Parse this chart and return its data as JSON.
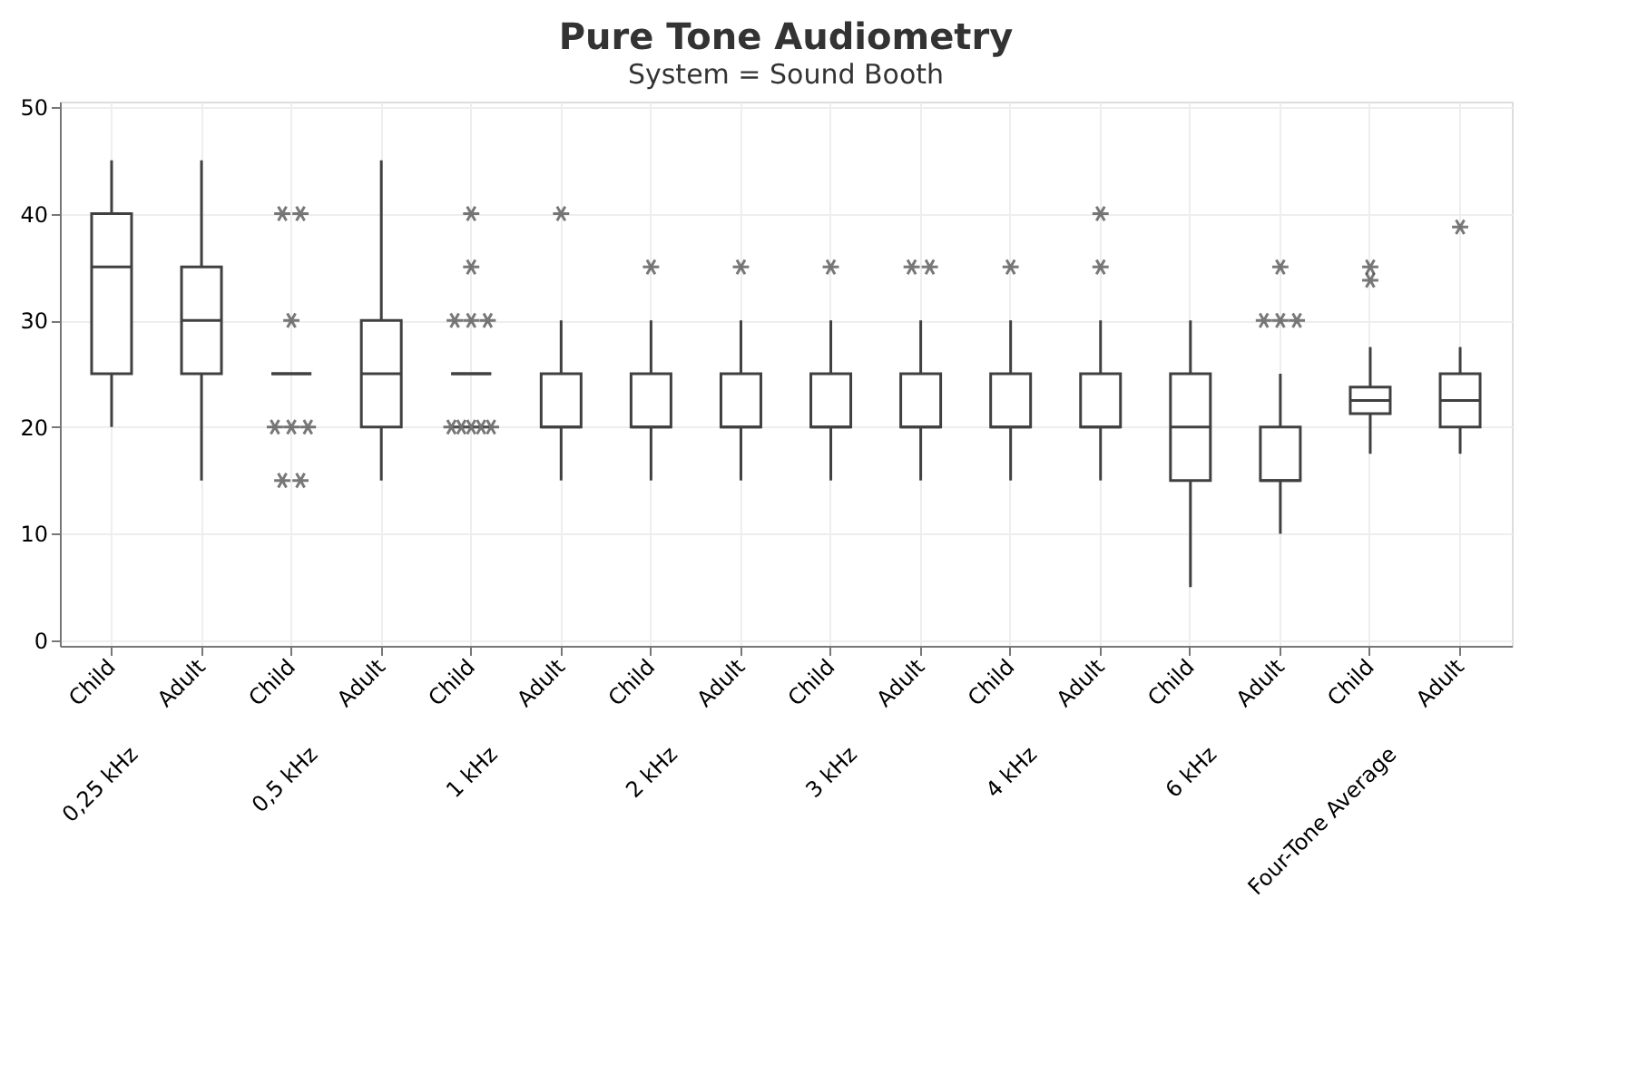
{
  "chart_data": {
    "type": "box",
    "title": "Pure Tone Audiometry",
    "subtitle": "System = Sound Booth",
    "categories": [
      "Child",
      "Adult",
      "Child",
      "Adult",
      "Child",
      "Adult",
      "Child",
      "Adult",
      "Child",
      "Adult",
      "Child",
      "Adult",
      "Child",
      "Adult",
      "Child",
      "Adult"
    ],
    "annotations": [
      "0,25 kHz",
      "0,5 kHz",
      "1 kHz",
      "2 kHz",
      "3 kHz",
      "4 kHz",
      "6 kHz",
      "Four-Tone Average"
    ],
    "boxes": [
      {
        "low": 20,
        "q1": 25,
        "median": 35,
        "q3": 40,
        "high": 45
      },
      {
        "low": 15,
        "q1": 25,
        "median": 30,
        "q3": 35,
        "high": 45
      },
      {
        "low": 25,
        "q1": 25,
        "median": 25,
        "q3": 25,
        "high": 25,
        "outliers": [
          40,
          40,
          30,
          20,
          20,
          20,
          15,
          15
        ]
      },
      {
        "low": 15,
        "q1": 20,
        "median": 25,
        "q3": 30,
        "high": 45
      },
      {
        "low": 25,
        "q1": 25,
        "median": 25,
        "q3": 25,
        "high": 25,
        "outliers": [
          40,
          35,
          30,
          30,
          30,
          20,
          20,
          20,
          20,
          20
        ]
      },
      {
        "low": 15,
        "q1": 20,
        "median": 20,
        "q3": 25,
        "high": 30,
        "outliers": [
          40
        ]
      },
      {
        "low": 15,
        "q1": 20,
        "median": 20,
        "q3": 25,
        "high": 30,
        "outliers": [
          35
        ]
      },
      {
        "low": 15,
        "q1": 20,
        "median": 20,
        "q3": 25,
        "high": 30,
        "outliers": [
          35
        ]
      },
      {
        "low": 15,
        "q1": 20,
        "median": 20,
        "q3": 25,
        "high": 30,
        "outliers": [
          35
        ]
      },
      {
        "low": 15,
        "q1": 20,
        "median": 20,
        "q3": 25,
        "high": 30,
        "outliers": [
          35,
          35
        ]
      },
      {
        "low": 15,
        "q1": 20,
        "median": 20,
        "q3": 25,
        "high": 30,
        "outliers": [
          35
        ]
      },
      {
        "low": 15,
        "q1": 20,
        "median": 20,
        "q3": 25,
        "high": 30,
        "outliers": [
          40,
          35
        ]
      },
      {
        "low": 5,
        "q1": 15,
        "median": 20,
        "q3": 25,
        "high": 30
      },
      {
        "low": 10,
        "q1": 15,
        "median": 15,
        "q3": 20,
        "high": 25,
        "outliers": [
          35,
          30,
          30,
          30
        ]
      },
      {
        "low": 17.5,
        "q1": 21.25,
        "median": 22.5,
        "q3": 23.75,
        "high": 27.5,
        "outliers": [
          35,
          33.75
        ]
      },
      {
        "low": 17.5,
        "q1": 20,
        "median": 22.5,
        "q3": 25,
        "high": 27.5,
        "outliers": [
          38.75
        ]
      }
    ],
    "color": "#404040",
    "marker": "star",
    "ylim": [
      -0.5,
      50.5
    ],
    "yticks": [
      0,
      10,
      20,
      30,
      40,
      50
    ],
    "grid": true
  }
}
